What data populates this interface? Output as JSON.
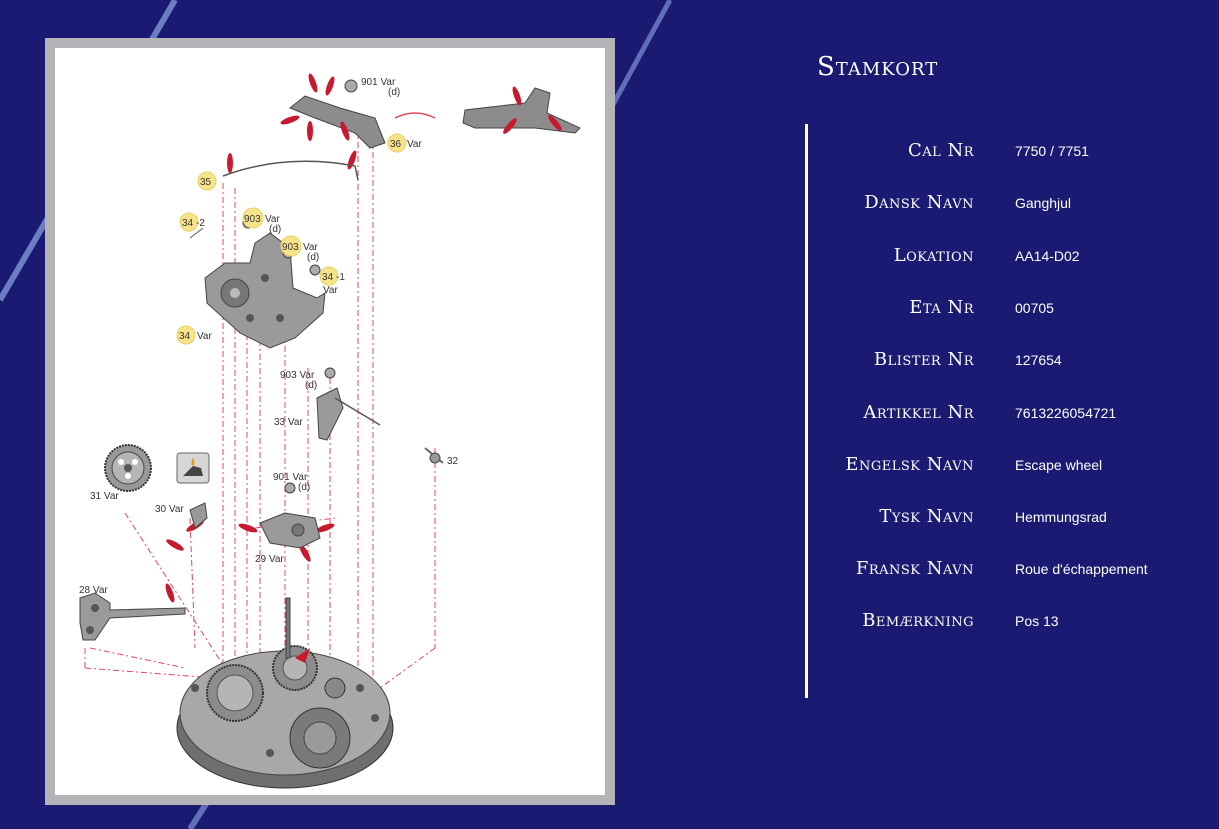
{
  "title": "Stamkort",
  "fields": [
    {
      "label": "Cal Nr",
      "value": "7750 / 7751"
    },
    {
      "label": "Dansk Navn",
      "value": "Ganghjul"
    },
    {
      "label": "Lokation",
      "value": "AA14-D02"
    },
    {
      "label": "Eta Nr",
      "value": "00705"
    },
    {
      "label": "Blister Nr",
      "value": "127654"
    },
    {
      "label": "Artikkel Nr",
      "value": "7613226054721"
    },
    {
      "label": "Engelsk Navn",
      "value": "Escape wheel"
    },
    {
      "label": "Tysk Navn",
      "value": "Hemmungsrad"
    },
    {
      "label": "Fransk Navn",
      "value": "Roue d'échappement"
    },
    {
      "label": "Bemærkning",
      "value": "Pos 13"
    }
  ],
  "diagram": {
    "callouts": {
      "c901a": "901 Var",
      "c901a_d": "(d)",
      "c36": "36",
      "c36_var": "Var",
      "c35": "35",
      "c34_2": "34",
      "c34_2_suffix": "-2",
      "c903a": "903",
      "c903a_var": "Var",
      "c903a_d": "(d)",
      "c903b": "903",
      "c903b_var": "Var",
      "c903b_d": "(d)",
      "c34_1": "34",
      "c34_1_suffix": "-1",
      "c34_1_var": "Var",
      "c34": "34",
      "c34_var": "Var",
      "c903c": "903 Var",
      "c903c_d": "(d)",
      "c33": "33 Var",
      "c32": "32",
      "c31": "31 Var",
      "c30": "30 Var",
      "c901b": "901 Var",
      "c901b_d": "(d)",
      "c29": "29 Var",
      "c28": "28 Var"
    }
  }
}
